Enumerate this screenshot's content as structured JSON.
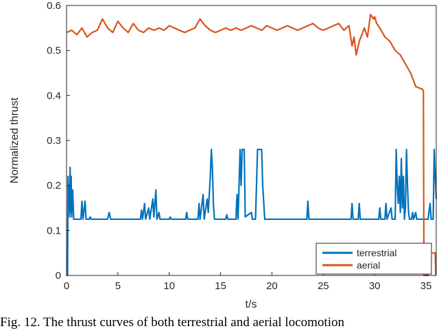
{
  "caption": "Fig. 12. The thrust curves of both terrestrial and aerial locomotion",
  "chart_data": {
    "type": "line",
    "title": "",
    "xlabel": "t/s",
    "ylabel": "Normalized thrust",
    "xlim": [
      0,
      36
    ],
    "ylim": [
      0,
      0.6
    ],
    "xticks": [
      0,
      5,
      10,
      15,
      20,
      25,
      30,
      35
    ],
    "yticks": [
      0,
      0.1,
      0.2,
      0.3,
      0.4,
      0.5,
      0.6
    ],
    "xtick_labels": [
      "0",
      "5",
      "10",
      "15",
      "20",
      "25",
      "30",
      "35"
    ],
    "ytick_labels": [
      "0",
      "0.1",
      "0.2",
      "0.3",
      "0.4",
      "0.5",
      "0.6"
    ],
    "grid": false,
    "legend_position": "bottom-right",
    "series": [
      {
        "name": "terrestrial",
        "color": "#0072BD",
        "points": [
          [
            0,
            0
          ],
          [
            0.1,
            0
          ],
          [
            0.15,
            0.22
          ],
          [
            0.2,
            0.15
          ],
          [
            0.25,
            0.2
          ],
          [
            0.3,
            0.13
          ],
          [
            0.35,
            0.24
          ],
          [
            0.4,
            0.14
          ],
          [
            0.45,
            0.22
          ],
          [
            0.5,
            0.13
          ],
          [
            0.6,
            0.19
          ],
          [
            0.7,
            0.125
          ],
          [
            1.4,
            0.125
          ],
          [
            1.5,
            0.165
          ],
          [
            1.6,
            0.125
          ],
          [
            1.8,
            0.165
          ],
          [
            1.9,
            0.125
          ],
          [
            2.2,
            0.125
          ],
          [
            2.3,
            0.13
          ],
          [
            2.4,
            0.125
          ],
          [
            4.0,
            0.125
          ],
          [
            4.15,
            0.14
          ],
          [
            4.3,
            0.125
          ],
          [
            7.2,
            0.125
          ],
          [
            7.3,
            0.145
          ],
          [
            7.4,
            0.125
          ],
          [
            7.6,
            0.16
          ],
          [
            7.7,
            0.125
          ],
          [
            8.0,
            0.15
          ],
          [
            8.1,
            0.125
          ],
          [
            8.4,
            0.17
          ],
          [
            8.5,
            0.13
          ],
          [
            8.7,
            0.19
          ],
          [
            8.8,
            0.125
          ],
          [
            9.0,
            0.14
          ],
          [
            9.1,
            0.125
          ],
          [
            10.0,
            0.125
          ],
          [
            10.1,
            0.13
          ],
          [
            10.2,
            0.125
          ],
          [
            11.6,
            0.125
          ],
          [
            11.7,
            0.14
          ],
          [
            11.8,
            0.125
          ],
          [
            12.8,
            0.125
          ],
          [
            12.9,
            0.16
          ],
          [
            13.0,
            0.125
          ],
          [
            13.3,
            0.18
          ],
          [
            13.4,
            0.125
          ],
          [
            13.7,
            0.17
          ],
          [
            13.8,
            0.14
          ],
          [
            14.0,
            0.22
          ],
          [
            14.1,
            0.28
          ],
          [
            14.2,
            0.24
          ],
          [
            14.3,
            0.16
          ],
          [
            14.4,
            0.125
          ],
          [
            15.5,
            0.125
          ],
          [
            15.6,
            0.135
          ],
          [
            15.7,
            0.125
          ],
          [
            16.5,
            0.125
          ],
          [
            16.6,
            0.18
          ],
          [
            16.7,
            0.125
          ],
          [
            16.9,
            0.28
          ],
          [
            17.0,
            0.2
          ],
          [
            17.1,
            0.28
          ],
          [
            17.3,
            0.28
          ],
          [
            17.4,
            0.13
          ],
          [
            18.0,
            0.14
          ],
          [
            18.1,
            0.125
          ],
          [
            18.4,
            0.125
          ],
          [
            18.6,
            0.28
          ],
          [
            19.0,
            0.28
          ],
          [
            19.1,
            0.2
          ],
          [
            19.3,
            0.125
          ],
          [
            23.4,
            0.125
          ],
          [
            23.5,
            0.165
          ],
          [
            23.6,
            0.125
          ],
          [
            27.7,
            0.125
          ],
          [
            27.8,
            0.16
          ],
          [
            27.9,
            0.125
          ],
          [
            28.4,
            0.125
          ],
          [
            28.5,
            0.16
          ],
          [
            28.6,
            0.125
          ],
          [
            30.4,
            0.125
          ],
          [
            30.5,
            0.15
          ],
          [
            30.6,
            0.125
          ],
          [
            31.0,
            0.125
          ],
          [
            31.1,
            0.16
          ],
          [
            31.2,
            0.125
          ],
          [
            31.6,
            0.15
          ],
          [
            31.7,
            0.125
          ],
          [
            32.0,
            0.125
          ],
          [
            32.1,
            0.28
          ],
          [
            32.2,
            0.2
          ],
          [
            32.3,
            0.16
          ],
          [
            32.4,
            0.22
          ],
          [
            32.5,
            0.14
          ],
          [
            32.6,
            0.26
          ],
          [
            32.7,
            0.15
          ],
          [
            32.8,
            0.22
          ],
          [
            32.9,
            0.125
          ],
          [
            33.0,
            0.15
          ],
          [
            33.1,
            0.28
          ],
          [
            33.2,
            0.2
          ],
          [
            33.3,
            0.14
          ],
          [
            33.4,
            0.125
          ],
          [
            33.6,
            0.125
          ],
          [
            33.7,
            0.14
          ],
          [
            33.8,
            0.125
          ],
          [
            34.0,
            0.14
          ],
          [
            34.1,
            0.125
          ],
          [
            34.6,
            0.125
          ],
          [
            34.8,
            0.125
          ],
          [
            35.2,
            0.125
          ],
          [
            35.4,
            0.16
          ],
          [
            35.5,
            0.125
          ],
          [
            35.7,
            0.125
          ],
          [
            35.8,
            0.28
          ],
          [
            35.9,
            0.22
          ],
          [
            36.0,
            0.17
          ]
        ]
      },
      {
        "name": "aerial",
        "color": "#D95319",
        "points": [
          [
            0,
            0.54
          ],
          [
            0.5,
            0.545
          ],
          [
            1.0,
            0.535
          ],
          [
            1.5,
            0.55
          ],
          [
            2.0,
            0.53
          ],
          [
            2.5,
            0.54
          ],
          [
            3.0,
            0.545
          ],
          [
            3.5,
            0.57
          ],
          [
            4.0,
            0.55
          ],
          [
            4.5,
            0.54
          ],
          [
            5.0,
            0.565
          ],
          [
            5.5,
            0.55
          ],
          [
            6.0,
            0.54
          ],
          [
            6.5,
            0.56
          ],
          [
            7.0,
            0.545
          ],
          [
            7.5,
            0.54
          ],
          [
            8.0,
            0.55
          ],
          [
            8.5,
            0.545
          ],
          [
            9.0,
            0.55
          ],
          [
            9.5,
            0.545
          ],
          [
            10.0,
            0.555
          ],
          [
            10.5,
            0.55
          ],
          [
            11.0,
            0.545
          ],
          [
            11.5,
            0.54
          ],
          [
            12.0,
            0.545
          ],
          [
            12.5,
            0.55
          ],
          [
            13.0,
            0.57
          ],
          [
            13.5,
            0.555
          ],
          [
            14.0,
            0.545
          ],
          [
            14.5,
            0.54
          ],
          [
            15.0,
            0.545
          ],
          [
            15.5,
            0.55
          ],
          [
            16.0,
            0.545
          ],
          [
            16.5,
            0.55
          ],
          [
            17.0,
            0.545
          ],
          [
            17.5,
            0.55
          ],
          [
            18.0,
            0.555
          ],
          [
            18.5,
            0.55
          ],
          [
            19.0,
            0.545
          ],
          [
            19.5,
            0.555
          ],
          [
            20.0,
            0.55
          ],
          [
            20.5,
            0.545
          ],
          [
            21.0,
            0.55
          ],
          [
            21.5,
            0.555
          ],
          [
            22.0,
            0.55
          ],
          [
            22.5,
            0.545
          ],
          [
            23.0,
            0.55
          ],
          [
            23.5,
            0.555
          ],
          [
            24.0,
            0.56
          ],
          [
            24.5,
            0.55
          ],
          [
            25.0,
            0.545
          ],
          [
            25.5,
            0.55
          ],
          [
            26.0,
            0.555
          ],
          [
            26.5,
            0.56
          ],
          [
            27.0,
            0.545
          ],
          [
            27.5,
            0.555
          ],
          [
            27.8,
            0.51
          ],
          [
            28.0,
            0.53
          ],
          [
            28.2,
            0.49
          ],
          [
            28.5,
            0.52
          ],
          [
            29.0,
            0.55
          ],
          [
            29.3,
            0.53
          ],
          [
            29.6,
            0.58
          ],
          [
            29.9,
            0.57
          ],
          [
            30.0,
            0.575
          ],
          [
            30.2,
            0.56
          ],
          [
            30.5,
            0.55
          ],
          [
            31.0,
            0.53
          ],
          [
            31.5,
            0.52
          ],
          [
            32.0,
            0.5
          ],
          [
            32.5,
            0.49
          ],
          [
            33.0,
            0.47
          ],
          [
            33.5,
            0.45
          ],
          [
            34.0,
            0.42
          ],
          [
            34.5,
            0.415
          ],
          [
            34.6,
            0.415
          ],
          [
            34.75,
            0.41
          ],
          [
            34.8,
            0.0
          ],
          [
            35.2,
            0.0
          ],
          [
            35.2,
            0.05
          ],
          [
            35.9,
            0.05
          ],
          [
            35.95,
            0.0
          ]
        ]
      }
    ]
  }
}
